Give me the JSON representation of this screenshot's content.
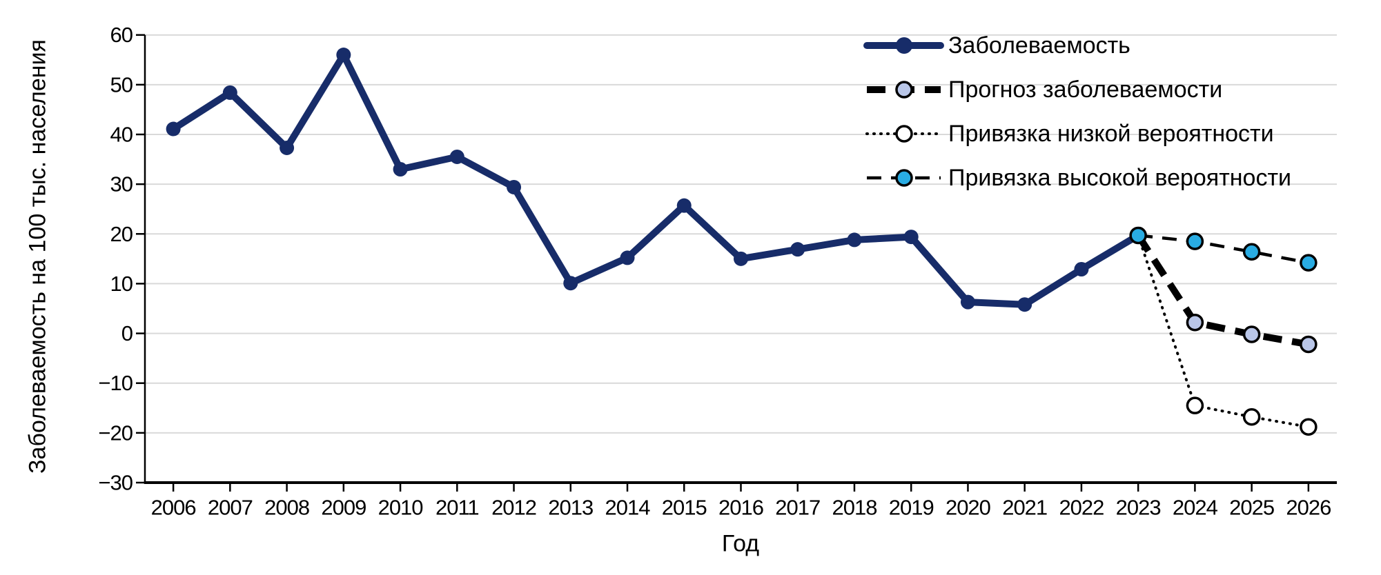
{
  "chart_data": {
    "type": "line",
    "title": "",
    "xlabel": "Год",
    "ylabel": "Заболеваемость на 100 тыс. населения",
    "x_years": [
      2006,
      2007,
      2008,
      2009,
      2010,
      2011,
      2012,
      2013,
      2014,
      2015,
      2016,
      2017,
      2018,
      2019,
      2020,
      2021,
      2022,
      2023,
      2024,
      2025,
      2026
    ],
    "ylim": [
      -30,
      60
    ],
    "yticks": [
      60,
      50,
      40,
      30,
      20,
      10,
      0,
      -10,
      -20,
      -30
    ],
    "grid": "horizontal",
    "gridline_color": "#D9D9D9",
    "axis_color": "#000000",
    "text_color": "#000000",
    "legend_position": "top-right-inside-no-frame",
    "series": [
      {
        "name": "Заболеваемость",
        "role": "observed",
        "line": {
          "style": "solid",
          "width": 10,
          "color": "#172C69"
        },
        "marker": {
          "shape": "circle",
          "fill": "#172C69",
          "stroke": "none",
          "stroke_width": 0,
          "r": 10.5
        },
        "years": [
          2006,
          2007,
          2008,
          2009,
          2010,
          2011,
          2012,
          2013,
          2014,
          2015,
          2016,
          2017,
          2018,
          2019,
          2020,
          2021,
          2022,
          2023
        ],
        "values": [
          41.1,
          48.4,
          37.3,
          56.0,
          33.0,
          35.5,
          29.4,
          10.1,
          15.2,
          25.7,
          15.0,
          16.9,
          18.8,
          19.4,
          6.3,
          5.8,
          12.9,
          19.7
        ],
        "marker_years": [
          2006,
          2007,
          2008,
          2009,
          2010,
          2011,
          2012,
          2013,
          2014,
          2015,
          2016,
          2017,
          2018,
          2019,
          2020,
          2021,
          2022,
          2023
        ]
      },
      {
        "name": "Прогноз заболеваемости",
        "role": "forecast",
        "line": {
          "style": "dashed-thick",
          "width": 10,
          "color": "#000000"
        },
        "marker": {
          "shape": "circle",
          "fill": "#B9C6E8",
          "stroke": "#000000",
          "stroke_width": 3.5,
          "r": 11
        },
        "years": [
          2023,
          2024,
          2025,
          2026
        ],
        "values": [
          19.7,
          2.2,
          -0.2,
          -2.2
        ],
        "marker_years": [
          2024,
          2025,
          2026
        ]
      },
      {
        "name": "Привязка низкой вероятности",
        "role": "low-probability-bound",
        "line": {
          "style": "dotted",
          "width": 4,
          "color": "#000000"
        },
        "marker": {
          "shape": "circle",
          "fill": "#FFFFFF",
          "stroke": "#000000",
          "stroke_width": 3.5,
          "r": 11
        },
        "years": [
          2023,
          2024,
          2025,
          2026
        ],
        "values": [
          19.7,
          -14.5,
          -16.8,
          -18.8
        ],
        "marker_years": [
          2024,
          2025,
          2026
        ]
      },
      {
        "name": "Привязка высокой вероятности",
        "role": "high-probability-bound",
        "line": {
          "style": "dashed-thin",
          "width": 4.5,
          "color": "#000000"
        },
        "marker": {
          "shape": "circle",
          "fill": "#29ACE3",
          "stroke": "#000000",
          "stroke_width": 3.5,
          "r": 11
        },
        "years": [
          2023,
          2024,
          2025,
          2026
        ],
        "values": [
          19.7,
          18.5,
          16.4,
          14.2
        ],
        "marker_years": [
          2023,
          2024,
          2025,
          2026
        ]
      }
    ]
  }
}
